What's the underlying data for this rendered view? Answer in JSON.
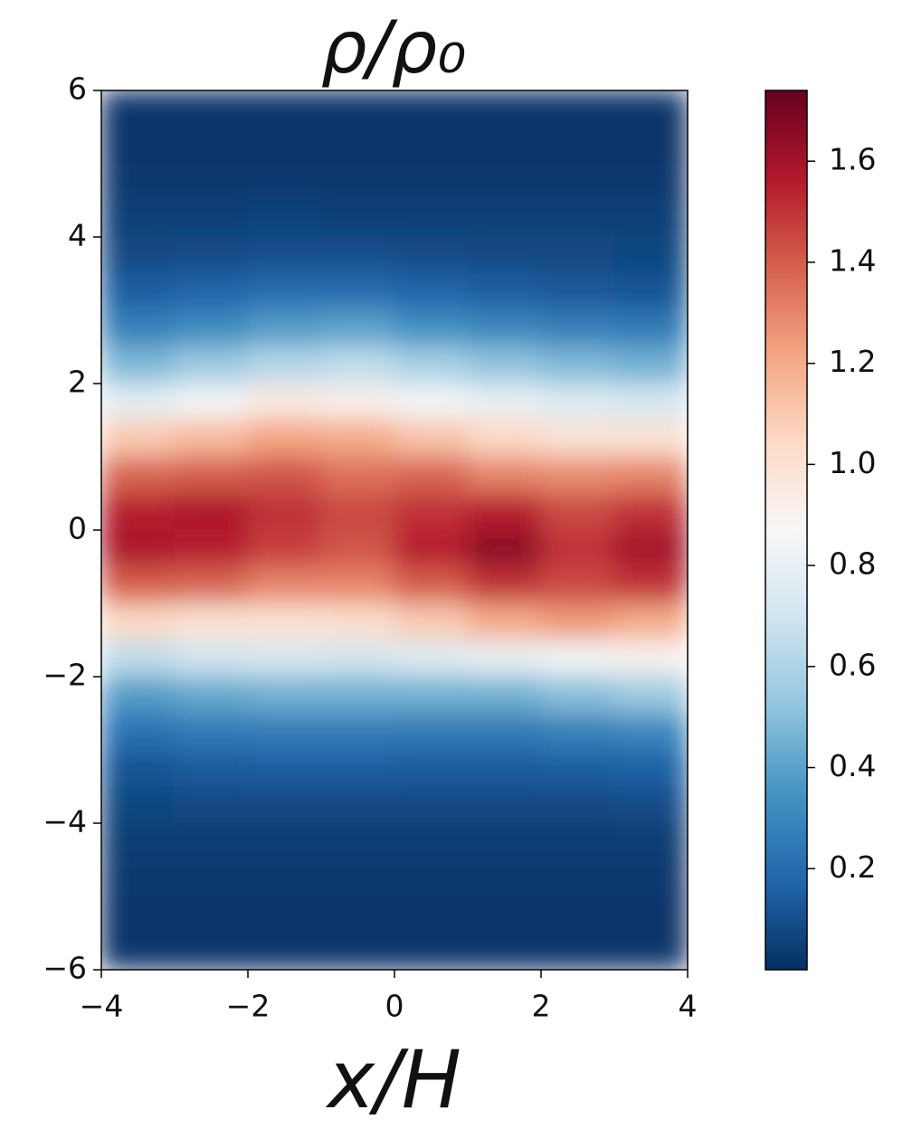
{
  "chart_data": {
    "type": "heatmap",
    "title": "ρ/ρ₀",
    "xlabel": "x/H",
    "xlim": [
      -4,
      4
    ],
    "ylim": [
      -6,
      6
    ],
    "xticks": [
      {
        "value": -4,
        "label": "−4"
      },
      {
        "value": -2,
        "label": "−2"
      },
      0,
      2,
      4
    ],
    "yticks": [
      {
        "value": -6,
        "label": "−6"
      },
      {
        "value": -4,
        "label": "−4"
      },
      {
        "value": -2,
        "label": "−2"
      },
      0,
      2,
      4,
      6
    ],
    "x": [
      -3.5,
      -2.5,
      -1.5,
      -0.5,
      0.5,
      1.5,
      2.5,
      3.5
    ],
    "y": [
      5.75,
      5.25,
      4.75,
      4.25,
      3.75,
      3.25,
      2.75,
      2.25,
      1.75,
      1.25,
      0.75,
      0.25,
      -0.25,
      -0.75,
      -1.25,
      -1.75,
      -2.25,
      -2.75,
      -3.25,
      -3.75,
      -4.25,
      -4.75,
      -5.25,
      -5.75
    ],
    "values": [
      [
        0.02,
        0.02,
        0.02,
        0.02,
        0.02,
        0.02,
        0.02,
        0.02
      ],
      [
        0.02,
        0.02,
        0.02,
        0.02,
        0.02,
        0.02,
        0.02,
        0.02
      ],
      [
        0.03,
        0.03,
        0.03,
        0.03,
        0.03,
        0.03,
        0.03,
        0.03
      ],
      [
        0.05,
        0.05,
        0.06,
        0.05,
        0.05,
        0.05,
        0.05,
        0.05
      ],
      [
        0.08,
        0.09,
        0.1,
        0.1,
        0.09,
        0.08,
        0.08,
        0.07
      ],
      [
        0.15,
        0.17,
        0.2,
        0.2,
        0.17,
        0.15,
        0.13,
        0.12
      ],
      [
        0.28,
        0.32,
        0.38,
        0.4,
        0.34,
        0.3,
        0.27,
        0.25
      ],
      [
        0.48,
        0.55,
        0.62,
        0.65,
        0.58,
        0.52,
        0.48,
        0.45
      ],
      [
        0.78,
        0.85,
        0.95,
        0.92,
        0.85,
        0.8,
        0.75,
        0.72
      ],
      [
        1.1,
        1.15,
        1.22,
        1.2,
        1.12,
        1.05,
        1.0,
        1.0
      ],
      [
        1.38,
        1.4,
        1.42,
        1.35,
        1.38,
        1.3,
        1.28,
        1.3
      ],
      [
        1.55,
        1.58,
        1.5,
        1.45,
        1.5,
        1.55,
        1.45,
        1.5
      ],
      [
        1.58,
        1.55,
        1.48,
        1.42,
        1.55,
        1.65,
        1.5,
        1.6
      ],
      [
        1.4,
        1.38,
        1.3,
        1.3,
        1.4,
        1.5,
        1.45,
        1.5
      ],
      [
        1.05,
        1.0,
        1.0,
        1.02,
        1.1,
        1.2,
        1.25,
        1.2
      ],
      [
        0.65,
        0.7,
        0.72,
        0.7,
        0.75,
        0.8,
        0.85,
        0.9
      ],
      [
        0.38,
        0.42,
        0.45,
        0.45,
        0.45,
        0.45,
        0.5,
        0.55
      ],
      [
        0.22,
        0.25,
        0.26,
        0.26,
        0.25,
        0.25,
        0.28,
        0.3
      ],
      [
        0.12,
        0.14,
        0.15,
        0.15,
        0.14,
        0.14,
        0.15,
        0.16
      ],
      [
        0.07,
        0.08,
        0.08,
        0.08,
        0.08,
        0.08,
        0.08,
        0.09
      ],
      [
        0.04,
        0.04,
        0.04,
        0.04,
        0.04,
        0.04,
        0.04,
        0.04
      ],
      [
        0.03,
        0.03,
        0.03,
        0.03,
        0.03,
        0.03,
        0.03,
        0.03
      ],
      [
        0.02,
        0.02,
        0.02,
        0.02,
        0.02,
        0.02,
        0.02,
        0.02
      ],
      [
        0.02,
        0.02,
        0.02,
        0.02,
        0.02,
        0.02,
        0.02,
        0.02
      ]
    ],
    "colormap": [
      "#053061",
      "#2166ac",
      "#4393c3",
      "#92c5de",
      "#d1e5f0",
      "#f7f7f7",
      "#fddbc7",
      "#f4a582",
      "#d6604d",
      "#b2182b",
      "#67001f"
    ],
    "colorbar": {
      "clim": [
        0,
        1.74
      ],
      "ticks": [
        0.2,
        0.4,
        0.6,
        0.8,
        {
          "value": 1,
          "label": "1.0"
        },
        1.2,
        1.4,
        1.6
      ]
    }
  }
}
